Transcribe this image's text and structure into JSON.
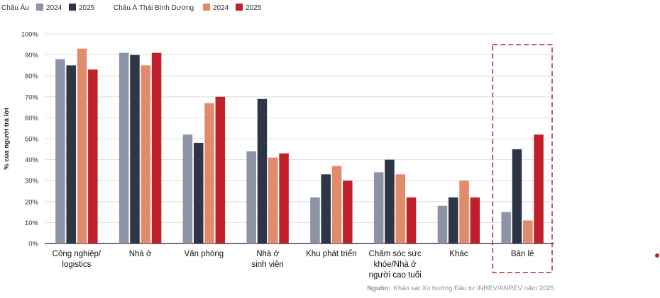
{
  "colors": {
    "europe_2024": "#8c93a5",
    "europe_2025": "#2e3547",
    "apac_2024": "#e08b6c",
    "apac_2025": "#c0202a",
    "grid": "#d6d6d6",
    "highlight": "#c0202a"
  },
  "legend": {
    "europe_label": "Châu Âu",
    "apac_label": "Châu Á Thái Bình Dương",
    "year_2024": "2024",
    "year_2025": "2025"
  },
  "source": {
    "prefix": "Nguồn:",
    "text": "Khảo sát Xu hướng Đầu tư INREV/ANREV năm 2025"
  },
  "chart_data": {
    "type": "bar",
    "ylabel": "% của người trả lời",
    "ylim": [
      0,
      100
    ],
    "yticks": [
      "0%",
      "10%",
      "20%",
      "30%",
      "40%",
      "50%",
      "60%",
      "70%",
      "80%",
      "90%",
      "100%"
    ],
    "grid": true,
    "legend_position": "top-left",
    "categories": [
      [
        "Công nghiệp/",
        "logistics"
      ],
      [
        "Nhà ở"
      ],
      [
        "Văn phòng"
      ],
      [
        "Nhà ở",
        "sinh viên"
      ],
      [
        "Khu phát triển"
      ],
      [
        "Chăm sóc sức",
        "khỏe/Nhà ở",
        "người cao tuổi"
      ],
      [
        "Khác"
      ],
      [
        "Bán lẻ"
      ]
    ],
    "highlighted_category": 7,
    "series": [
      {
        "group": "Châu Âu",
        "name": "2024",
        "color_key": "europe_2024",
        "values": [
          88,
          91,
          52,
          44,
          22,
          34,
          18,
          15
        ]
      },
      {
        "group": "Châu Âu",
        "name": "2025",
        "color_key": "europe_2025",
        "values": [
          85,
          90,
          48,
          69,
          33,
          40,
          22,
          45
        ]
      },
      {
        "group": "Châu Á Thái Bình Dương",
        "name": "2024",
        "color_key": "apac_2024",
        "values": [
          93,
          85,
          67,
          41,
          37,
          33,
          30,
          11
        ]
      },
      {
        "group": "Châu Á Thái Bình Dương",
        "name": "2025",
        "color_key": "apac_2025",
        "values": [
          83,
          91,
          70,
          43,
          30,
          22,
          22,
          52
        ]
      }
    ]
  }
}
